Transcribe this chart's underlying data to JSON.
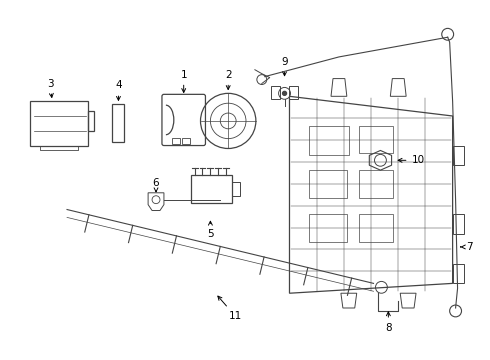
{
  "bg_color": "#ffffff",
  "line_color": "#444444",
  "label_color": "#000000",
  "figsize": [
    4.9,
    3.6
  ],
  "dpi": 100
}
